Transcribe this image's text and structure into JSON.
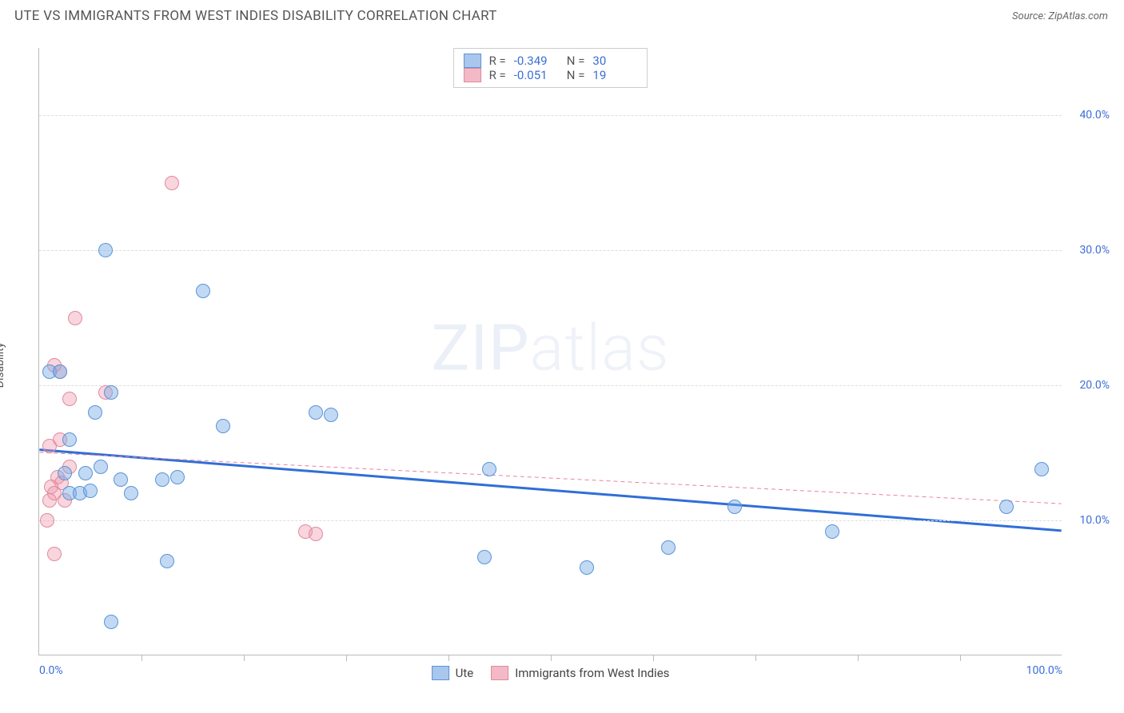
{
  "header": {
    "title": "UTE VS IMMIGRANTS FROM WEST INDIES DISABILITY CORRELATION CHART",
    "source": "Source: ZipAtlas.com"
  },
  "chart": {
    "type": "scatter",
    "ylabel": "Disability",
    "watermark": "ZIPatlas",
    "xlim": [
      0,
      100
    ],
    "ylim": [
      0,
      45
    ],
    "background_color": "#ffffff",
    "grid_color": "#dddddd",
    "grid_dash": "4,4",
    "axis_color": "#bbbbbb",
    "tick_label_color": "#3b6fd6",
    "label_fontsize": 14,
    "y_gridlines": [
      10,
      20,
      30,
      40
    ],
    "y_ticks": [
      {
        "y": 10,
        "label": "10.0%"
      },
      {
        "y": 20,
        "label": "20.0%"
      },
      {
        "y": 30,
        "label": "30.0%"
      },
      {
        "y": 40,
        "label": "40.0%"
      }
    ],
    "x_ticks_minor": [
      10,
      20,
      30,
      40,
      50,
      60,
      70,
      80,
      90
    ],
    "x_ticks_labeled": [
      {
        "x": 0,
        "label": "0.0%"
      },
      {
        "x": 100,
        "label": "100.0%"
      }
    ],
    "series": [
      {
        "name": "Ute",
        "color_fill": "rgba(120,170,230,0.45)",
        "color_stroke": "#5a94d6",
        "swatch_fill": "#a9c7ec",
        "swatch_border": "#5a94d6",
        "marker_radius": 9,
        "trend": {
          "y_at_x0": 15.2,
          "y_at_x100": 9.2,
          "color": "#2f6fd6",
          "width": 3,
          "dash": "none"
        },
        "stats": {
          "R": "-0.349",
          "N": "30"
        },
        "points": [
          {
            "x": 1.0,
            "y": 21.0
          },
          {
            "x": 2.0,
            "y": 21.0
          },
          {
            "x": 6.5,
            "y": 30.0
          },
          {
            "x": 16.0,
            "y": 27.0
          },
          {
            "x": 5.5,
            "y": 18.0
          },
          {
            "x": 7.0,
            "y": 19.5
          },
          {
            "x": 3.0,
            "y": 16.0
          },
          {
            "x": 18.0,
            "y": 17.0
          },
          {
            "x": 27.0,
            "y": 18.0
          },
          {
            "x": 28.5,
            "y": 17.8
          },
          {
            "x": 2.5,
            "y": 13.5
          },
          {
            "x": 4.5,
            "y": 13.5
          },
          {
            "x": 6.0,
            "y": 14.0
          },
          {
            "x": 8.0,
            "y": 13.0
          },
          {
            "x": 12.0,
            "y": 13.0
          },
          {
            "x": 13.5,
            "y": 13.2
          },
          {
            "x": 3.0,
            "y": 12.0
          },
          {
            "x": 4.0,
            "y": 12.0
          },
          {
            "x": 5.0,
            "y": 12.2
          },
          {
            "x": 9.0,
            "y": 12.0
          },
          {
            "x": 44.0,
            "y": 13.8
          },
          {
            "x": 68.0,
            "y": 11.0
          },
          {
            "x": 77.5,
            "y": 9.2
          },
          {
            "x": 94.5,
            "y": 11.0
          },
          {
            "x": 98.0,
            "y": 13.8
          },
          {
            "x": 61.5,
            "y": 8.0
          },
          {
            "x": 43.5,
            "y": 7.3
          },
          {
            "x": 53.5,
            "y": 6.5
          },
          {
            "x": 12.5,
            "y": 7.0
          },
          {
            "x": 7.0,
            "y": 2.5
          }
        ]
      },
      {
        "name": "Immigrants from West Indies",
        "color_fill": "rgba(240,150,170,0.40)",
        "color_stroke": "#e08aa0",
        "swatch_fill": "#f3b9c7",
        "swatch_border": "#e08aa0",
        "marker_radius": 9,
        "trend": {
          "y_at_x0": 15.0,
          "y_at_x100": 11.2,
          "color": "#e884a0",
          "width": 1,
          "dash": "5,4"
        },
        "stats": {
          "R": "-0.051",
          "N": "19"
        },
        "points": [
          {
            "x": 13.0,
            "y": 35.0
          },
          {
            "x": 3.5,
            "y": 25.0
          },
          {
            "x": 1.5,
            "y": 21.5
          },
          {
            "x": 2.0,
            "y": 21.0
          },
          {
            "x": 6.5,
            "y": 19.5
          },
          {
            "x": 3.0,
            "y": 19.0
          },
          {
            "x": 2.0,
            "y": 16.0
          },
          {
            "x": 1.0,
            "y": 15.5
          },
          {
            "x": 3.0,
            "y": 14.0
          },
          {
            "x": 1.8,
            "y": 13.2
          },
          {
            "x": 2.2,
            "y": 12.8
          },
          {
            "x": 1.2,
            "y": 12.5
          },
          {
            "x": 1.5,
            "y": 12.0
          },
          {
            "x": 2.5,
            "y": 11.5
          },
          {
            "x": 1.0,
            "y": 11.5
          },
          {
            "x": 0.8,
            "y": 10.0
          },
          {
            "x": 1.5,
            "y": 7.5
          },
          {
            "x": 26.0,
            "y": 9.2
          },
          {
            "x": 27.0,
            "y": 9.0
          }
        ]
      }
    ],
    "legend_bottom": [
      {
        "label": "Ute",
        "series": 0
      },
      {
        "label": "Immigrants from West Indies",
        "series": 1
      }
    ]
  }
}
